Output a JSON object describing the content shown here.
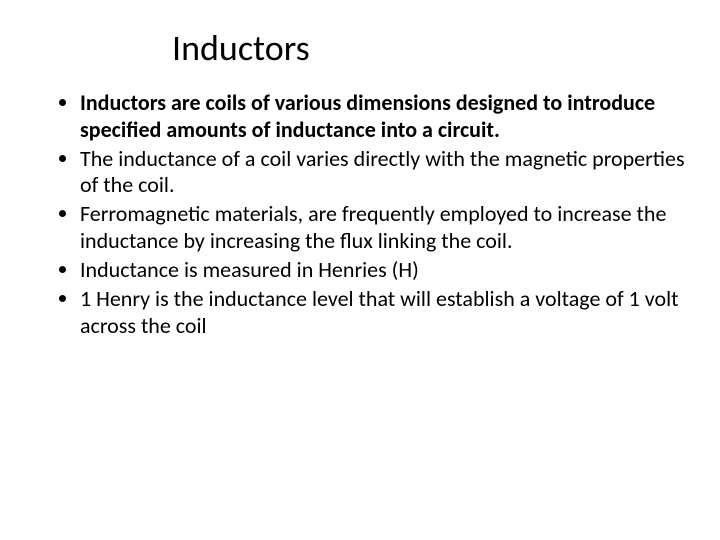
{
  "title": "Inductors",
  "bullets": [
    {
      "prefix": "Inductors ",
      "bold_prefix": true,
      "rest": "are coils of various dimensions designed to introduce specified amounts of inductance into a circuit.",
      "bold_rest": true
    },
    {
      "prefix": "",
      "bold_prefix": false,
      "rest": "The inductance of a coil varies directly with the magnetic properties of the coil.",
      "bold_rest": false
    },
    {
      "prefix": "",
      "bold_prefix": false,
      "rest": "Ferromagnetic materials, are frequently employed to increase the inductance by increasing the flux linking the coil.",
      "bold_rest": false
    },
    {
      "prefix": "",
      "bold_prefix": false,
      "rest": "Inductance is measured in Henries (H)",
      "bold_rest": false
    },
    {
      "prefix": "",
      "bold_prefix": false,
      "rest": "1 Henry is the inductance level that will establish a voltage of 1 volt across the coil",
      "bold_rest": false
    }
  ],
  "style": {
    "background_color": "#ffffff",
    "text_color": "#000000",
    "title_fontsize": 36,
    "body_fontsize": 22,
    "font_family": "Calibri"
  }
}
